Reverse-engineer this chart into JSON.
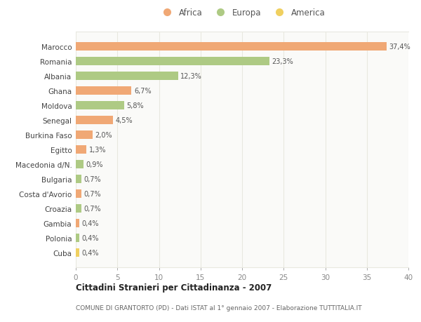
{
  "categories": [
    "Marocco",
    "Romania",
    "Albania",
    "Ghana",
    "Moldova",
    "Senegal",
    "Burkina Faso",
    "Egitto",
    "Macedonia d/N.",
    "Bulgaria",
    "Costa d'Avorio",
    "Croazia",
    "Gambia",
    "Polonia",
    "Cuba"
  ],
  "values": [
    37.4,
    23.3,
    12.3,
    6.7,
    5.8,
    4.5,
    2.0,
    1.3,
    0.9,
    0.7,
    0.7,
    0.7,
    0.4,
    0.4,
    0.4
  ],
  "labels": [
    "37,4%",
    "23,3%",
    "12,3%",
    "6,7%",
    "5,8%",
    "4,5%",
    "2,0%",
    "1,3%",
    "0,9%",
    "0,7%",
    "0,7%",
    "0,7%",
    "0,4%",
    "0,4%",
    "0,4%"
  ],
  "continents": [
    "Africa",
    "Europa",
    "Europa",
    "Africa",
    "Europa",
    "Africa",
    "Africa",
    "Africa",
    "Europa",
    "Europa",
    "Africa",
    "Europa",
    "Africa",
    "Europa",
    "America"
  ],
  "colors": {
    "Africa": "#F0A875",
    "Europa": "#AECA84",
    "America": "#F0D060"
  },
  "xlim": [
    0,
    40
  ],
  "xticks": [
    0,
    5,
    10,
    15,
    20,
    25,
    30,
    35,
    40
  ],
  "title": "Cittadini Stranieri per Cittadinanza - 2007",
  "subtitle": "COMUNE DI GRANTORTO (PD) - Dati ISTAT al 1° gennaio 2007 - Elaborazione TUTTITALIA.IT",
  "bg_color": "#FFFFFF",
  "plot_bg_color": "#FAFAF8",
  "grid_color": "#E8E8E0",
  "bar_height": 0.55,
  "legend_items": [
    "Africa",
    "Europa",
    "America"
  ]
}
